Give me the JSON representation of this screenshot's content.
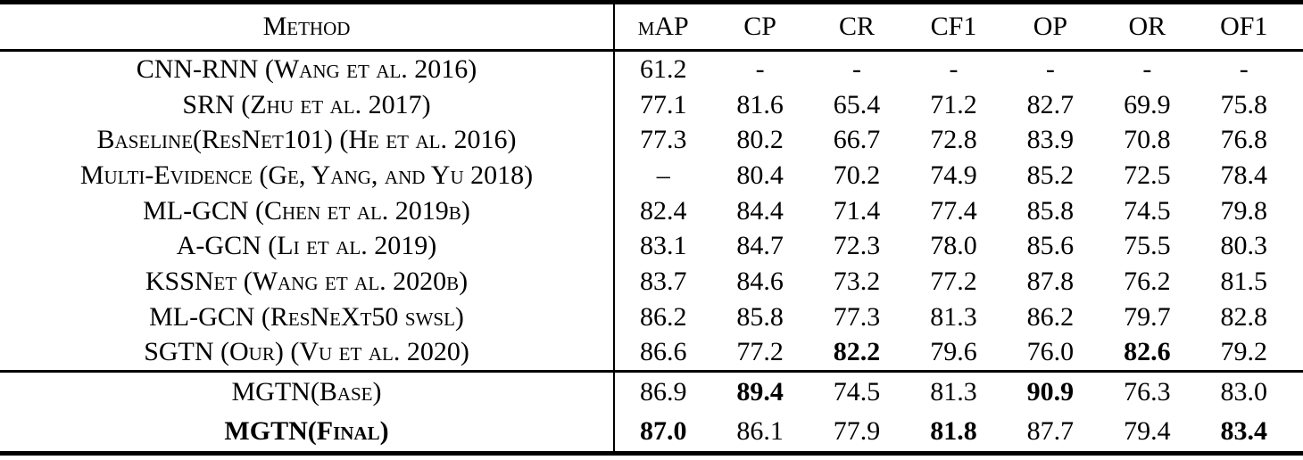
{
  "table": {
    "header": {
      "method_label": "Method",
      "metrics": [
        "mAP",
        "CP",
        "CR",
        "CF1",
        "OP",
        "OR",
        "OF1"
      ]
    },
    "body_rows": [
      {
        "method": "CNN-RNN (Wang et al. 2016)",
        "values": [
          "61.2",
          "-",
          "-",
          "-",
          "-",
          "-",
          "-"
        ]
      },
      {
        "method": "SRN (Zhu et al. 2017)",
        "values": [
          "77.1",
          "81.6",
          "65.4",
          "71.2",
          "82.7",
          "69.9",
          "75.8"
        ]
      },
      {
        "method": "Baseline(ResNet101) (He et al. 2016)",
        "values": [
          "77.3",
          "80.2",
          "66.7",
          "72.8",
          "83.9",
          "70.8",
          "76.8"
        ]
      },
      {
        "method": "Multi-Evidence (Ge, Yang, and Yu 2018)",
        "values": [
          "–",
          "80.4",
          "70.2",
          "74.9",
          "85.2",
          "72.5",
          "78.4"
        ]
      },
      {
        "method": "ML-GCN (Chen et al. 2019b)",
        "values": [
          "82.4",
          "84.4",
          "71.4",
          "77.4",
          "85.8",
          "74.5",
          "79.8"
        ]
      },
      {
        "method": "A-GCN (Li et al. 2019)",
        "values": [
          "83.1",
          "84.7",
          "72.3",
          "78.0",
          "85.6",
          "75.5",
          "80.3"
        ]
      },
      {
        "method": "KSSNet (Wang et al. 2020b)",
        "values": [
          "83.7",
          "84.6",
          "73.2",
          "77.2",
          "87.8",
          "76.2",
          "81.5"
        ]
      },
      {
        "method": "ML-GCN (ResNeXt50 swsl)",
        "values": [
          "86.2",
          "85.8",
          "77.3",
          "81.3",
          "86.2",
          "79.7",
          "82.8"
        ]
      },
      {
        "method": "SGTN (Our) (Vu et al. 2020)",
        "values": [
          "86.6",
          "77.2",
          "82.2",
          "79.6",
          "76.0",
          "82.6",
          "79.2"
        ],
        "bold": [
          false,
          false,
          true,
          false,
          false,
          true,
          false
        ]
      }
    ],
    "footer_rows": [
      {
        "method": "MGTN(Base)",
        "method_bold": false,
        "values": [
          "86.9",
          "89.4",
          "74.5",
          "81.3",
          "90.9",
          "76.3",
          "83.0"
        ],
        "bold": [
          false,
          true,
          false,
          false,
          true,
          false,
          false
        ]
      },
      {
        "method": "MGTN(Final)",
        "method_bold": true,
        "values": [
          "87.0",
          "86.1",
          "77.9",
          "81.8",
          "87.7",
          "79.4",
          "83.4"
        ],
        "bold": [
          true,
          false,
          false,
          true,
          false,
          false,
          true
        ]
      }
    ]
  }
}
